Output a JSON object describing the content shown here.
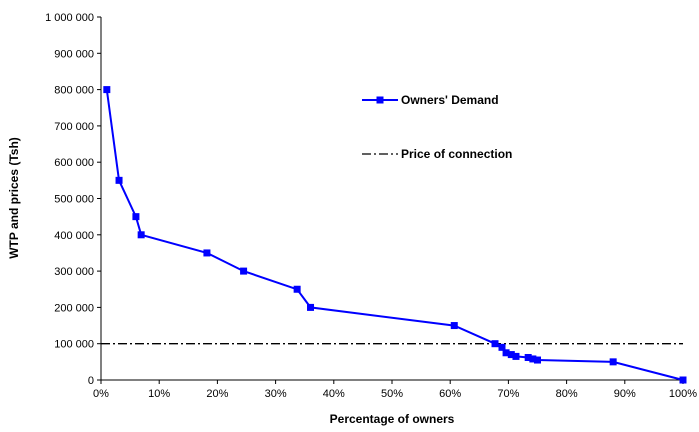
{
  "chart_data": {
    "type": "line",
    "title": "",
    "xlabel": "Percentage of owners",
    "ylabel": "WTP and prices (Tsh)",
    "xlim": [
      0,
      100
    ],
    "ylim": [
      0,
      1000000
    ],
    "x_ticks": [
      0,
      10,
      20,
      30,
      40,
      50,
      60,
      70,
      80,
      90,
      100
    ],
    "x_tick_labels": [
      "0%",
      "10%",
      "20%",
      "30%",
      "40%",
      "50%",
      "60%",
      "70%",
      "80%",
      "90%",
      "100%"
    ],
    "y_ticks": [
      0,
      100000,
      200000,
      300000,
      400000,
      500000,
      600000,
      700000,
      800000,
      900000,
      1000000
    ],
    "y_tick_labels": [
      "0",
      "100 000",
      "200 000",
      "300 000",
      "400 000",
      "500 000",
      "600 000",
      "700 000",
      "800 000",
      "900 000",
      "1 000 000"
    ],
    "grid": false,
    "legend_position": "right",
    "series": [
      {
        "name": "Owners' Demand",
        "color": "#0000ff",
        "marker": "square",
        "x": [
          1,
          3.1,
          6,
          6.9,
          18.2,
          24.5,
          33.7,
          36,
          60.7,
          67.7,
          68.9,
          69.6,
          70.5,
          71.3,
          73.4,
          74.2,
          75,
          88,
          100
        ],
        "y": [
          800000,
          550000,
          450000,
          400000,
          350000,
          300000,
          250000,
          200000,
          150000,
          100000,
          90000,
          75000,
          70000,
          65000,
          62000,
          58000,
          55000,
          50000,
          0
        ]
      },
      {
        "name": "Price of connection",
        "color": "#000000",
        "style": "dash-dot",
        "y_constant": 100000
      }
    ]
  }
}
